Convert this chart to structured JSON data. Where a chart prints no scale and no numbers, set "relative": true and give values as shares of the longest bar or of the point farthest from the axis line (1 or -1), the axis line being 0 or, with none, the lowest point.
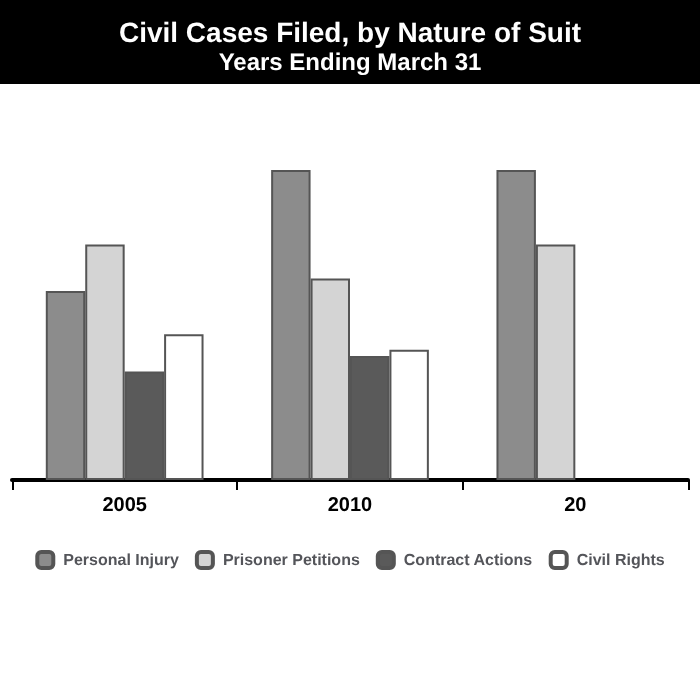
{
  "chart_data": {
    "type": "bar",
    "title": "Civil Cases Filed, by Nature of Suit",
    "subtitle": "Years Ending March 31",
    "relative": true,
    "categories": [
      "2005",
      "2010",
      "20"
    ],
    "series": [
      {
        "name": "Personal Injury",
        "color": "#8c8c8c",
        "values": [
          0.61,
          1,
          1
        ]
      },
      {
        "name": "Prisoner Petitions",
        "color": "#d4d4d4",
        "values": [
          0.76,
          0.65,
          0.76
        ]
      },
      {
        "name": "Contract Actions",
        "color": "#5a5a5a",
        "values": [
          0.35,
          0.4,
          null
        ]
      },
      {
        "name": "Civil Rights",
        "color": "#ffffff",
        "values": [
          0.47,
          0.42,
          null
        ]
      }
    ],
    "legend": "bottom"
  }
}
